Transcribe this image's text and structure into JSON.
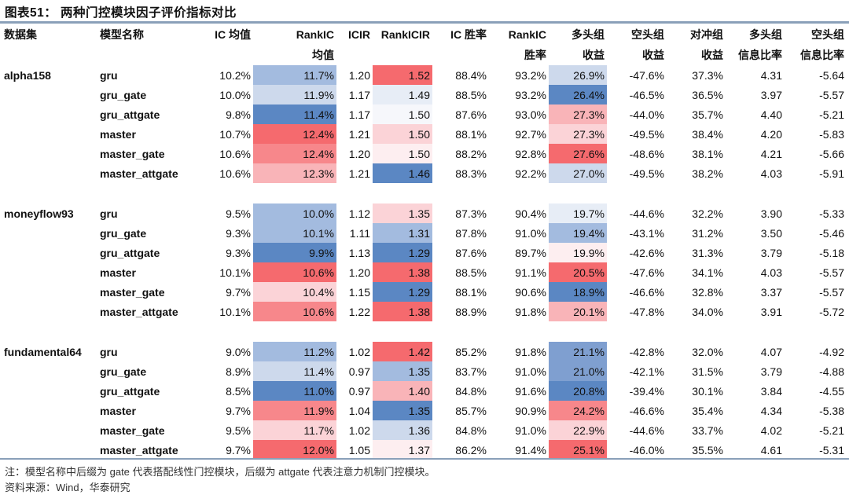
{
  "title": "图表51：  两种门控模块因子评价指标对比",
  "headers": {
    "row1": [
      "数据集",
      "模型名称",
      "IC 均值",
      "RankIC",
      "ICIR",
      "RankICIR",
      "IC 胜率",
      "RankIC",
      "多头组",
      "空头组",
      "对冲组",
      "多头组",
      "空头组"
    ],
    "row2": [
      "",
      "",
      "",
      "均值",
      "",
      "",
      "",
      "胜率",
      "收益",
      "收益",
      "收益",
      "信息比率",
      "信息比率"
    ]
  },
  "heat_colors": {
    "blue_strong": "#5b87c3",
    "blue_mid": "#7f9fd0",
    "blue_light": "#a3bbdf",
    "blue_pale": "#cdd9ec",
    "blue_faint": "#e7edf6",
    "neutral": "#f6f7fb",
    "red_faint": "#fdeef0",
    "red_pale": "#fbd3d7",
    "red_light": "#f9b4b8",
    "red_mid": "#f7878b",
    "red_strong": "#f56a6e"
  },
  "groups": [
    {
      "dataset": "alpha158",
      "rows": [
        {
          "model": "gru",
          "ic": "10.2%",
          "rankic": "11.7%",
          "rankic_c": "blue_light",
          "icir": "1.20",
          "rankicir": "1.52",
          "rankicir_c": "red_strong",
          "ic_win": "88.4%",
          "rankic_win": "93.2%",
          "long": "26.9%",
          "long_c": "blue_pale",
          "short": "-47.6%",
          "hedge": "37.3%",
          "long_ir": "4.31",
          "short_ir": "-5.64"
        },
        {
          "model": "gru_gate",
          "ic": "10.0%",
          "rankic": "11.9%",
          "rankic_c": "blue_pale",
          "icir": "1.17",
          "rankicir": "1.49",
          "rankicir_c": "blue_faint",
          "ic_win": "88.5%",
          "rankic_win": "93.2%",
          "long": "26.4%",
          "long_c": "blue_strong",
          "short": "-46.5%",
          "hedge": "36.5%",
          "long_ir": "3.97",
          "short_ir": "-5.57"
        },
        {
          "model": "gru_attgate",
          "ic": "9.8%",
          "rankic": "11.4%",
          "rankic_c": "blue_strong",
          "icir": "1.17",
          "rankicir": "1.50",
          "rankicir_c": "neutral",
          "ic_win": "87.6%",
          "rankic_win": "93.0%",
          "long": "27.3%",
          "long_c": "red_light",
          "short": "-44.0%",
          "hedge": "35.7%",
          "long_ir": "4.40",
          "short_ir": "-5.21"
        },
        {
          "model": "master",
          "ic": "10.7%",
          "rankic": "12.4%",
          "rankic_c": "red_strong",
          "icir": "1.21",
          "rankicir": "1.50",
          "rankicir_c": "red_pale",
          "ic_win": "88.1%",
          "rankic_win": "92.7%",
          "long": "27.3%",
          "long_c": "red_pale",
          "short": "-49.5%",
          "hedge": "38.4%",
          "long_ir": "4.20",
          "short_ir": "-5.83"
        },
        {
          "model": "master_gate",
          "ic": "10.6%",
          "rankic": "12.4%",
          "rankic_c": "red_mid",
          "icir": "1.20",
          "rankicir": "1.50",
          "rankicir_c": "red_faint",
          "ic_win": "88.2%",
          "rankic_win": "92.8%",
          "long": "27.6%",
          "long_c": "red_strong",
          "short": "-48.6%",
          "hedge": "38.1%",
          "long_ir": "4.21",
          "short_ir": "-5.66"
        },
        {
          "model": "master_attgate",
          "ic": "10.6%",
          "rankic": "12.3%",
          "rankic_c": "red_light",
          "icir": "1.21",
          "rankicir": "1.46",
          "rankicir_c": "blue_strong",
          "ic_win": "88.3%",
          "rankic_win": "92.2%",
          "long": "27.0%",
          "long_c": "blue_pale",
          "short": "-49.5%",
          "hedge": "38.2%",
          "long_ir": "4.03",
          "short_ir": "-5.91"
        }
      ]
    },
    {
      "dataset": "moneyflow93",
      "rows": [
        {
          "model": "gru",
          "ic": "9.5%",
          "rankic": "10.0%",
          "rankic_c": "blue_light",
          "icir": "1.12",
          "rankicir": "1.35",
          "rankicir_c": "red_pale",
          "ic_win": "87.3%",
          "rankic_win": "90.4%",
          "long": "19.7%",
          "long_c": "blue_faint",
          "short": "-44.6%",
          "hedge": "32.2%",
          "long_ir": "3.90",
          "short_ir": "-5.33"
        },
        {
          "model": "gru_gate",
          "ic": "9.3%",
          "rankic": "10.1%",
          "rankic_c": "blue_light",
          "icir": "1.11",
          "rankicir": "1.31",
          "rankicir_c": "blue_light",
          "ic_win": "87.8%",
          "rankic_win": "91.0%",
          "long": "19.4%",
          "long_c": "blue_light",
          "short": "-43.1%",
          "hedge": "31.2%",
          "long_ir": "3.50",
          "short_ir": "-5.46"
        },
        {
          "model": "gru_attgate",
          "ic": "9.3%",
          "rankic": "9.9%",
          "rankic_c": "blue_strong",
          "icir": "1.13",
          "rankicir": "1.29",
          "rankicir_c": "blue_strong",
          "ic_win": "87.6%",
          "rankic_win": "89.7%",
          "long": "19.9%",
          "long_c": "red_faint",
          "short": "-42.6%",
          "hedge": "31.3%",
          "long_ir": "3.79",
          "short_ir": "-5.18"
        },
        {
          "model": "master",
          "ic": "10.1%",
          "rankic": "10.6%",
          "rankic_c": "red_strong",
          "icir": "1.20",
          "rankicir": "1.38",
          "rankicir_c": "red_strong",
          "ic_win": "88.5%",
          "rankic_win": "91.1%",
          "long": "20.5%",
          "long_c": "red_strong",
          "short": "-47.6%",
          "hedge": "34.1%",
          "long_ir": "4.03",
          "short_ir": "-5.57"
        },
        {
          "model": "master_gate",
          "ic": "9.7%",
          "rankic": "10.4%",
          "rankic_c": "red_pale",
          "icir": "1.15",
          "rankicir": "1.29",
          "rankicir_c": "blue_strong",
          "ic_win": "88.1%",
          "rankic_win": "90.6%",
          "long": "18.9%",
          "long_c": "blue_strong",
          "short": "-46.6%",
          "hedge": "32.8%",
          "long_ir": "3.37",
          "short_ir": "-5.57"
        },
        {
          "model": "master_attgate",
          "ic": "10.1%",
          "rankic": "10.6%",
          "rankic_c": "red_mid",
          "icir": "1.22",
          "rankicir": "1.38",
          "rankicir_c": "red_strong",
          "ic_win": "88.9%",
          "rankic_win": "91.8%",
          "long": "20.1%",
          "long_c": "red_light",
          "short": "-47.8%",
          "hedge": "34.0%",
          "long_ir": "3.91",
          "short_ir": "-5.72"
        }
      ]
    },
    {
      "dataset": "fundamental64",
      "rows": [
        {
          "model": "gru",
          "ic": "9.0%",
          "rankic": "11.2%",
          "rankic_c": "blue_light",
          "icir": "1.02",
          "rankicir": "1.42",
          "rankicir_c": "red_strong",
          "ic_win": "85.2%",
          "rankic_win": "91.8%",
          "long": "21.1%",
          "long_c": "blue_mid",
          "short": "-42.8%",
          "hedge": "32.0%",
          "long_ir": "4.07",
          "short_ir": "-4.92"
        },
        {
          "model": "gru_gate",
          "ic": "8.9%",
          "rankic": "11.4%",
          "rankic_c": "blue_pale",
          "icir": "0.97",
          "rankicir": "1.35",
          "rankicir_c": "blue_light",
          "ic_win": "83.7%",
          "rankic_win": "91.0%",
          "long": "21.0%",
          "long_c": "blue_mid",
          "short": "-42.1%",
          "hedge": "31.5%",
          "long_ir": "3.79",
          "short_ir": "-4.88"
        },
        {
          "model": "gru_attgate",
          "ic": "8.5%",
          "rankic": "11.0%",
          "rankic_c": "blue_strong",
          "icir": "0.97",
          "rankicir": "1.40",
          "rankicir_c": "red_light",
          "ic_win": "84.8%",
          "rankic_win": "91.6%",
          "long": "20.8%",
          "long_c": "blue_strong",
          "short": "-39.4%",
          "hedge": "30.1%",
          "long_ir": "3.84",
          "short_ir": "-4.55"
        },
        {
          "model": "master",
          "ic": "9.7%",
          "rankic": "11.9%",
          "rankic_c": "red_mid",
          "icir": "1.04",
          "rankicir": "1.35",
          "rankicir_c": "blue_strong",
          "ic_win": "85.7%",
          "rankic_win": "90.9%",
          "long": "24.2%",
          "long_c": "red_mid",
          "short": "-46.6%",
          "hedge": "35.4%",
          "long_ir": "4.34",
          "short_ir": "-5.38"
        },
        {
          "model": "master_gate",
          "ic": "9.5%",
          "rankic": "11.7%",
          "rankic_c": "red_pale",
          "icir": "1.02",
          "rankicir": "1.36",
          "rankicir_c": "blue_pale",
          "ic_win": "84.8%",
          "rankic_win": "91.0%",
          "long": "22.9%",
          "long_c": "red_pale",
          "short": "-44.6%",
          "hedge": "33.7%",
          "long_ir": "4.02",
          "short_ir": "-5.21"
        },
        {
          "model": "master_attgate",
          "ic": "9.7%",
          "rankic": "12.0%",
          "rankic_c": "red_strong",
          "icir": "1.05",
          "rankicir": "1.37",
          "rankicir_c": "red_faint",
          "ic_win": "86.2%",
          "rankic_win": "91.4%",
          "long": "25.1%",
          "long_c": "red_strong",
          "short": "-46.0%",
          "hedge": "35.5%",
          "long_ir": "4.61",
          "short_ir": "-5.31"
        }
      ]
    }
  ],
  "notes": {
    "note": "注：模型名称中后缀为 gate 代表搭配线性门控模块，后缀为 attgate 代表注意力机制门控模块。",
    "source": "资料来源：Wind，华泰研究"
  }
}
